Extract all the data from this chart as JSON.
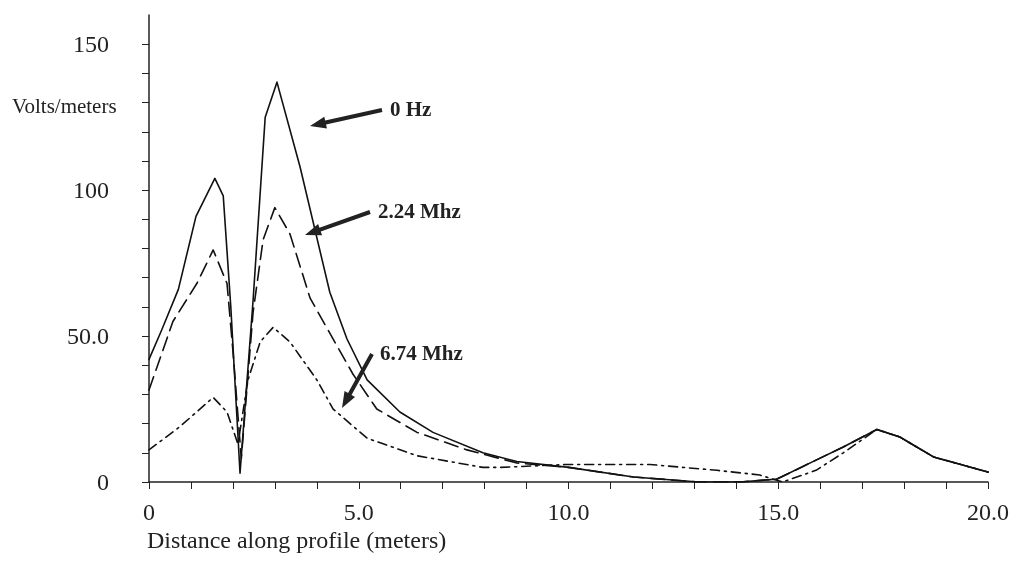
{
  "chart_data": {
    "type": "line",
    "xlabel": "Distance along profile (meters)",
    "ylabel": "Volts/meters",
    "xlim": [
      0,
      20
    ],
    "ylim": [
      0,
      160
    ],
    "xticks": [
      {
        "value": 0,
        "label": "0"
      },
      {
        "value": 1,
        "label": null
      },
      {
        "value": 2,
        "label": null
      },
      {
        "value": 3,
        "label": null
      },
      {
        "value": 4,
        "label": null
      },
      {
        "value": 5,
        "label": "5.0"
      },
      {
        "value": 6,
        "label": null
      },
      {
        "value": 7,
        "label": null
      },
      {
        "value": 8,
        "label": null
      },
      {
        "value": 9,
        "label": null
      },
      {
        "value": 10,
        "label": "10.0"
      },
      {
        "value": 11,
        "label": null
      },
      {
        "value": 12,
        "label": null
      },
      {
        "value": 13,
        "label": null
      },
      {
        "value": 14,
        "label": null
      },
      {
        "value": 15,
        "label": "15.0"
      },
      {
        "value": 16,
        "label": null
      },
      {
        "value": 17,
        "label": null
      },
      {
        "value": 18,
        "label": null
      },
      {
        "value": 19,
        "label": null
      },
      {
        "value": 20,
        "label": "20.0"
      }
    ],
    "yticks": [
      {
        "value": 0,
        "label": "0"
      },
      {
        "value": 10,
        "label": null
      },
      {
        "value": 20,
        "label": null
      },
      {
        "value": 30,
        "label": null
      },
      {
        "value": 40,
        "label": null
      },
      {
        "value": 50,
        "label": "50.0"
      },
      {
        "value": 60,
        "label": null
      },
      {
        "value": 70,
        "label": null
      },
      {
        "value": 80,
        "label": null
      },
      {
        "value": 90,
        "label": null
      },
      {
        "value": 100,
        "label": "100"
      },
      {
        "value": 110,
        "label": null
      },
      {
        "value": 120,
        "label": null
      },
      {
        "value": 130,
        "label": null
      },
      {
        "value": 140,
        "label": null
      },
      {
        "value": 150,
        "label": "150"
      }
    ],
    "grid": false,
    "marker": "none",
    "series": [
      {
        "color": "#111111",
        "line_style": "solid",
        "x": [
          0,
          0.3,
          0.7,
          1.12,
          1.57,
          1.77,
          1.95,
          2.17,
          2.48,
          2.77,
          3.05,
          3.6,
          4.31,
          4.72,
          5.2,
          5.98,
          6.77,
          7.96,
          8.77,
          10,
          11.55,
          13.1,
          14.1,
          14.97,
          15.9,
          16.55,
          17.35,
          17.9,
          18.7,
          20
        ],
        "values": [
          42,
          52,
          66,
          91,
          104,
          98,
          60,
          3,
          62,
          125,
          137,
          108,
          65,
          49,
          35,
          24,
          17,
          10,
          7,
          5,
          1.7,
          0,
          0,
          1,
          7.5,
          12,
          18,
          15.4,
          8.6,
          3.4
        ]
      },
      {
        "color": "#111111",
        "line_style": "dashed",
        "x": [
          0,
          0.57,
          1.14,
          1.53,
          1.86,
          2.0,
          2.2,
          2.48,
          2.72,
          3.0,
          3.36,
          3.84,
          4.31,
          4.86,
          5.43,
          6.39,
          7.58,
          8.77,
          10,
          11.55,
          13.1,
          14.1,
          14.97,
          15.9,
          16.55,
          17.35,
          17.9,
          18.7,
          20
        ],
        "values": [
          31.5,
          55,
          68,
          79.5,
          68,
          45,
          8,
          58,
          83,
          94,
          85,
          63,
          51,
          37,
          25,
          17,
          11,
          6.5,
          5,
          1.7,
          0,
          0,
          1,
          7.5,
          12,
          18,
          15.4,
          8.6,
          3.4
        ]
      },
      {
        "color": "#111111",
        "line_style": "dashdot",
        "x": [
          0,
          0.74,
          1.53,
          1.86,
          2.12,
          2.36,
          2.65,
          2.96,
          3.36,
          4.0,
          4.39,
          5.2,
          6.39,
          7.96,
          8.37,
          9.96,
          11.94,
          13.54,
          14.56,
          15.1,
          15.9,
          16.55,
          17.35,
          17.9,
          18.7,
          20
        ],
        "values": [
          11,
          19,
          29,
          24,
          13,
          35,
          48,
          53,
          48,
          35,
          25,
          15,
          9,
          5,
          5,
          6,
          6,
          4,
          2.4,
          0,
          4,
          10,
          18,
          15.4,
          8.6,
          3.4
        ]
      }
    ],
    "annotations": [
      "0 Hz",
      "2.24 Mhz",
      "6.74 Mhz"
    ]
  }
}
